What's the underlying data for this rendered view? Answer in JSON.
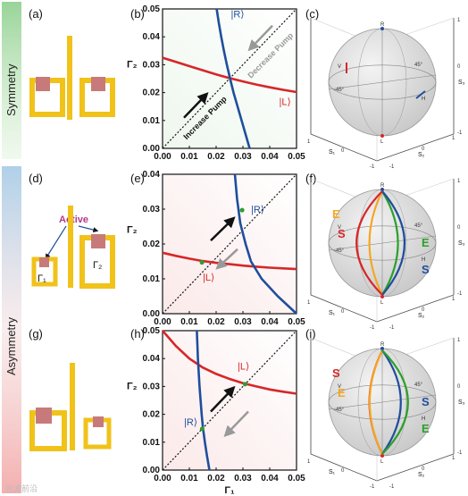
{
  "side_labels": {
    "symmetry": "Symmetry",
    "asymmetry": "Asymmetry"
  },
  "side_colors": {
    "symmetry": "#7fc97f",
    "asymmetry_top": "#a6cbe6",
    "asymmetry_bottom": "#f3a6a6"
  },
  "panel_labels": [
    "(a)",
    "(b)",
    "(c)",
    "(d)",
    "(e)",
    "(f)",
    "(g)",
    "(h)",
    "(i)"
  ],
  "structures": {
    "active_label": "Active",
    "gamma1": "Γ₁",
    "gamma2": "Γ₂",
    "frame_color": "#f0c21a",
    "pad_color": "#c87a7a",
    "active_color": "#b03a8c"
  },
  "chart_data": [
    {
      "type": "line",
      "panel": "(b)",
      "xlim": [
        0,
        0.05
      ],
      "ylim": [
        0,
        0.05
      ],
      "xticks": [
        "0.00",
        "0.01",
        "0.02",
        "0.03",
        "0.04",
        "0.05"
      ],
      "yticks": [
        "0.00",
        "0.01",
        "0.02",
        "0.03",
        "0.04",
        "0.05"
      ],
      "xlabel": "",
      "ylabel": "Γ₂",
      "series": [
        {
          "name": "|L⟩",
          "color": "#d62728",
          "x": [
            0,
            0.005,
            0.01,
            0.015,
            0.02,
            0.025,
            0.03,
            0.035,
            0.04,
            0.045,
            0.05
          ],
          "y": [
            0.0325,
            0.031,
            0.0295,
            0.028,
            0.0265,
            0.0252,
            0.024,
            0.0229,
            0.0219,
            0.021,
            0.0202
          ]
        },
        {
          "name": "|R⟩",
          "color": "#1f4e9c",
          "x": [
            0.0325,
            0.031,
            0.0295,
            0.028,
            0.0265,
            0.0252,
            0.024,
            0.0229,
            0.0219,
            0.021,
            0.0202
          ],
          "y": [
            0,
            0.005,
            0.01,
            0.015,
            0.02,
            0.025,
            0.03,
            0.035,
            0.04,
            0.045,
            0.05
          ]
        }
      ],
      "labels": {
        "R": "|R⟩",
        "L": "|L⟩",
        "increase": "Increase Pump",
        "decrease": "Decrease Pump"
      }
    },
    {
      "type": "line",
      "panel": "(e)",
      "xlim": [
        0,
        0.05
      ],
      "ylim": [
        0,
        0.04
      ],
      "xticks": [
        "0.00",
        "0.01",
        "0.02",
        "0.03",
        "0.04",
        "0.05"
      ],
      "yticks": [
        "0.00",
        "0.01",
        "0.02",
        "0.03",
        "0.04"
      ],
      "xlabel": "",
      "ylabel": "Γ₂",
      "series": [
        {
          "name": "|L⟩",
          "color": "#d62728",
          "x": [
            0,
            0.005,
            0.01,
            0.015,
            0.02,
            0.025,
            0.03,
            0.035,
            0.04,
            0.045,
            0.05
          ],
          "y": [
            0.0175,
            0.0166,
            0.0158,
            0.0151,
            0.0146,
            0.0142,
            0.0138,
            0.0135,
            0.0132,
            0.013,
            0.0128
          ]
        },
        {
          "name": "|R⟩",
          "color": "#1f4e9c",
          "x": [
            0.05,
            0.043,
            0.037,
            0.033,
            0.031,
            0.029,
            0.0278,
            0.027
          ],
          "y": [
            0,
            0.005,
            0.01,
            0.015,
            0.02,
            0.026,
            0.033,
            0.04
          ]
        }
      ],
      "labels": {
        "R": "|R⟩",
        "L": "|L⟩"
      }
    },
    {
      "type": "line",
      "panel": "(h)",
      "xlim": [
        0,
        0.05
      ],
      "ylim": [
        0,
        0.05
      ],
      "xticks": [
        "0.00",
        "0.01",
        "0.02",
        "0.03",
        "0.04",
        "0.05"
      ],
      "yticks": [
        "0.00",
        "0.01",
        "0.02",
        "0.03",
        "0.04",
        "0.05"
      ],
      "xlabel": "Γ₁",
      "ylabel": "Γ₂",
      "series": [
        {
          "name": "|L⟩",
          "color": "#d62728",
          "x": [
            0,
            0.005,
            0.01,
            0.015,
            0.02,
            0.025,
            0.03,
            0.035,
            0.04,
            0.045,
            0.05
          ],
          "y": [
            0.05,
            0.0445,
            0.04,
            0.0368,
            0.0345,
            0.0327,
            0.0312,
            0.03,
            0.0289,
            0.0281,
            0.0274
          ]
        },
        {
          "name": "|R⟩",
          "color": "#1f4e9c",
          "x": [
            0.0175,
            0.0166,
            0.0158,
            0.0151,
            0.0146,
            0.0142,
            0.0138,
            0.0135,
            0.0132,
            0.013,
            0.0128
          ],
          "y": [
            0,
            0.005,
            0.01,
            0.015,
            0.02,
            0.025,
            0.03,
            0.035,
            0.04,
            0.045,
            0.05
          ]
        }
      ],
      "labels": {
        "R": "|R⟩",
        "L": "|L⟩"
      }
    }
  ],
  "sphere": {
    "axis_ticks": [
      "-1",
      "0",
      "1"
    ],
    "s1": "S₁",
    "s2": "S₂",
    "s3": "S₃",
    "R": "R",
    "L": "L",
    "V": "V",
    "H": "H",
    "p45": "45°",
    "m45": "-45°",
    "S": "S",
    "E": "E"
  },
  "watermark": "光波前沿"
}
